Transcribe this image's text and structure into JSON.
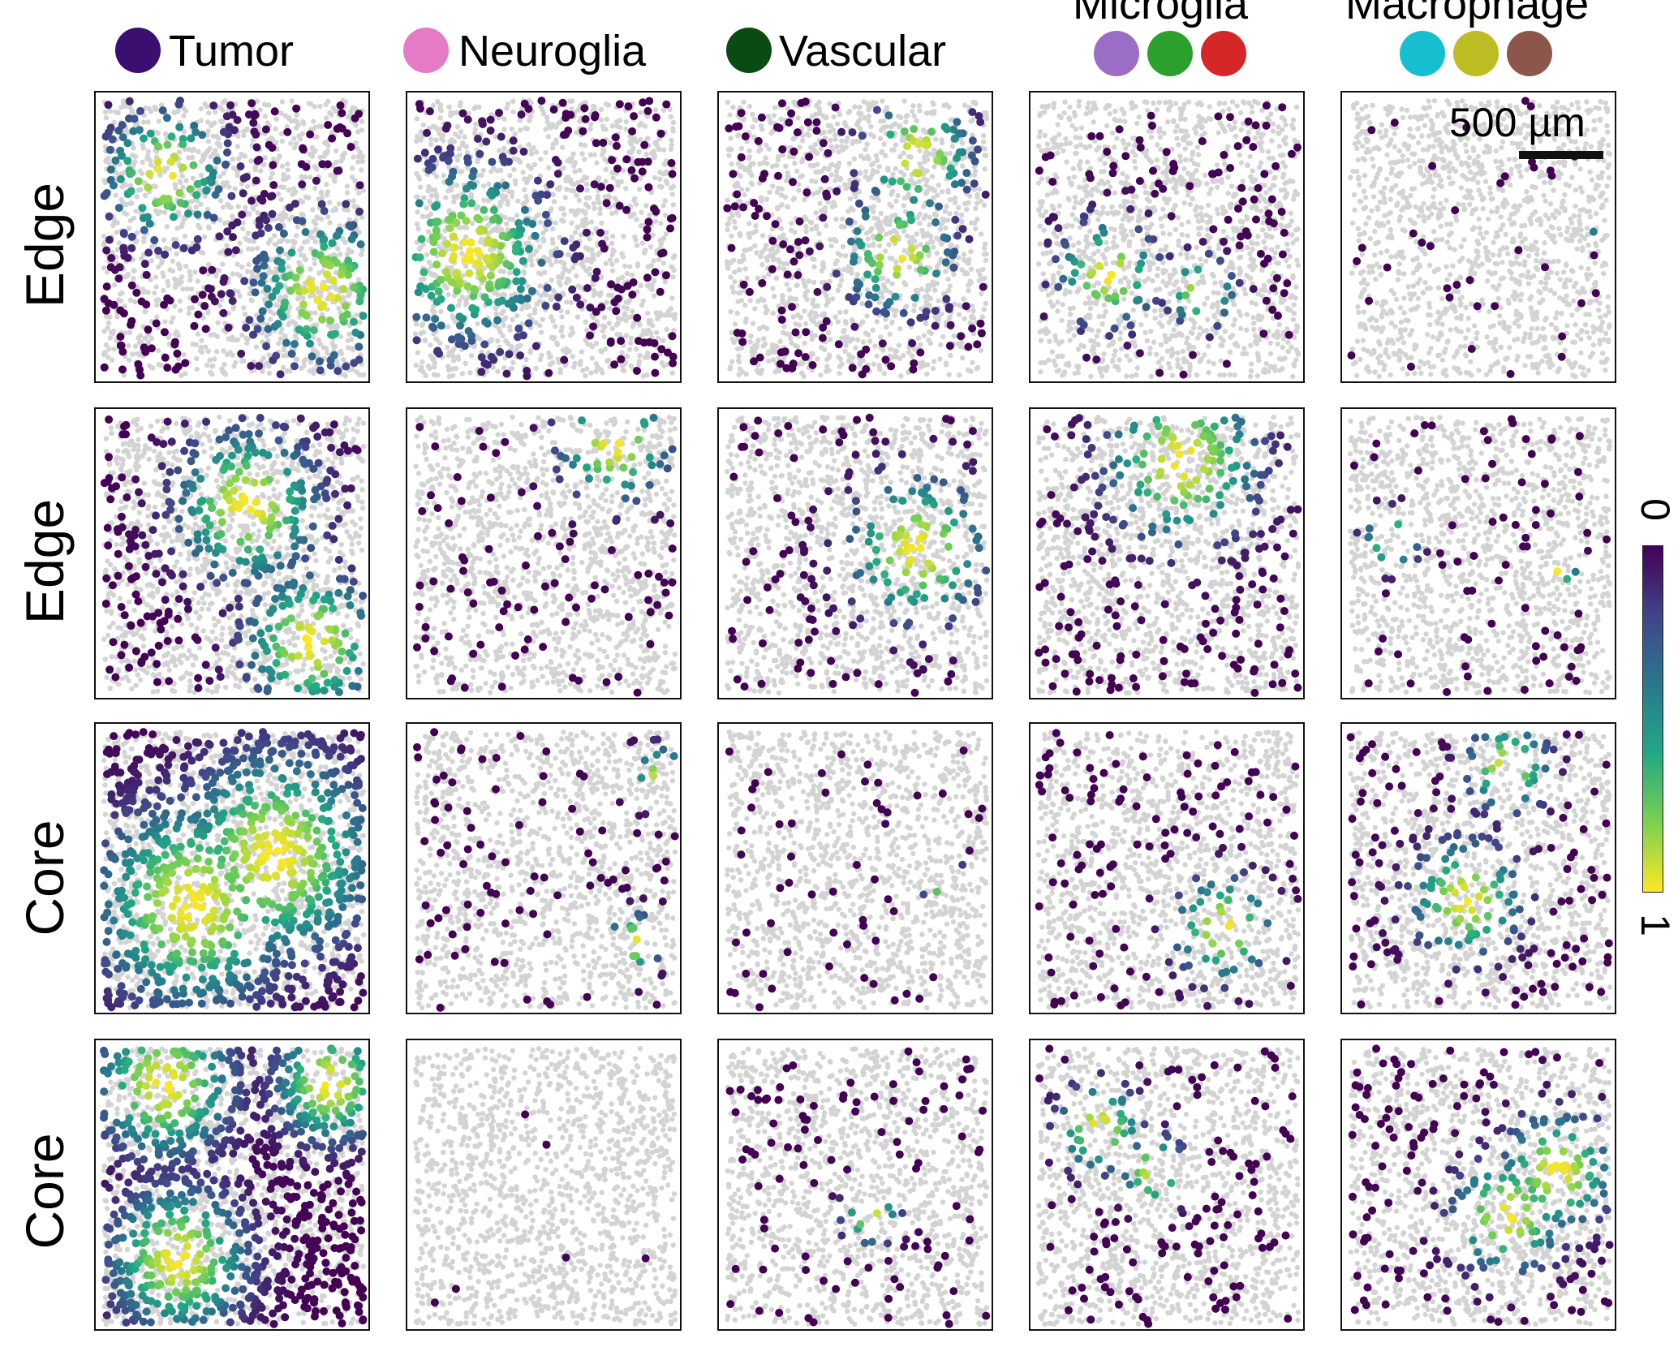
{
  "headers": [
    {
      "label": "Tumor",
      "dots": [
        "#3b0f70"
      ]
    },
    {
      "label": "Neuroglia",
      "dots": [
        "#e57ac6"
      ]
    },
    {
      "label": "Vascular",
      "dots": [
        "#0b4a12"
      ]
    },
    {
      "label": "Microglia",
      "dots": [
        "#9a6ec7",
        "#2ca02c",
        "#d62728"
      ]
    },
    {
      "label": "Macrophage",
      "dots": [
        "#17becf",
        "#bcbd22",
        "#8c564b"
      ]
    }
  ],
  "rows": [
    "Edge",
    "Edge",
    "Core",
    "Core"
  ],
  "scale_bar": {
    "label": "500 µm"
  },
  "colorbar": {
    "min_label": "0",
    "max_label": "1",
    "colors": [
      "#440154",
      "#414487",
      "#2a788e",
      "#22a884",
      "#7ad151",
      "#fde725"
    ]
  },
  "background_color": "#d3d3d3"
}
